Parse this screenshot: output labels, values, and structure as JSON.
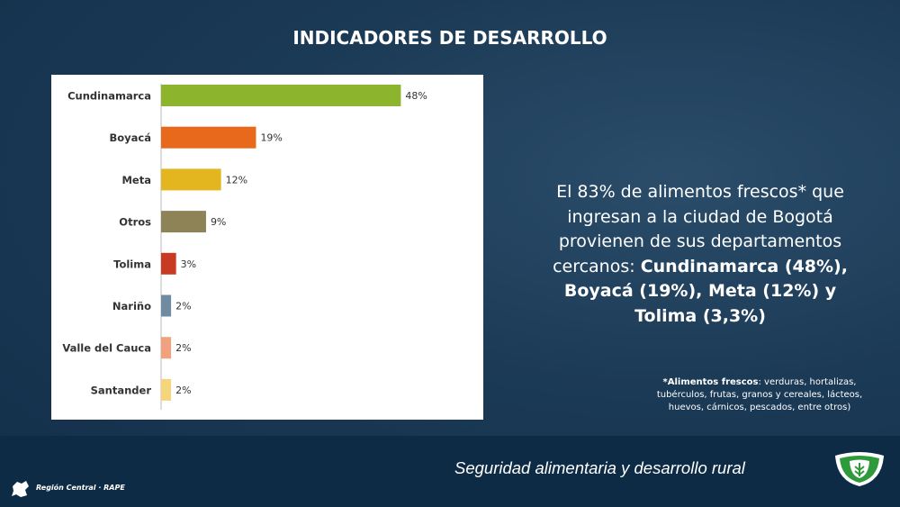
{
  "title": "INDICADORES DE DESARROLLO",
  "chart_data": {
    "type": "bar",
    "orientation": "horizontal",
    "categories": [
      "Cundinamarca",
      "Boyacá",
      "Meta",
      "Otros",
      "Tolima",
      "Nariño",
      "Valle del Cauca",
      "Santander"
    ],
    "values": [
      48,
      19,
      12,
      9,
      3,
      2,
      2,
      2
    ],
    "value_labels": [
      "48%",
      "19%",
      "12%",
      "9%",
      "3%",
      "2%",
      "2%",
      "2%"
    ],
    "colors": [
      "#8db42d",
      "#e8681c",
      "#e3b51f",
      "#8e8357",
      "#c93a22",
      "#6e8ba1",
      "#f0a27e",
      "#f5d57a"
    ]
  },
  "summary": {
    "plain": "El 83% de alimentos frescos* que ingresan a la ciudad de Bogotá provienen de sus departamentos cercanos: ",
    "bold": "Cundinamarca (48%), Boyacá (19%), Meta (12%) y Tolima (3,3%)"
  },
  "footnote": {
    "bold": "*Alimentos frescos",
    "plain": ": verduras, hortalizas, tubérculos, frutas, granos y cereales, lácteos, huevos, cárnicos, pescados, entre otros)"
  },
  "tagline": "Seguridad alimentaria y desarrollo rural",
  "organization": "Región Central · RAPE"
}
